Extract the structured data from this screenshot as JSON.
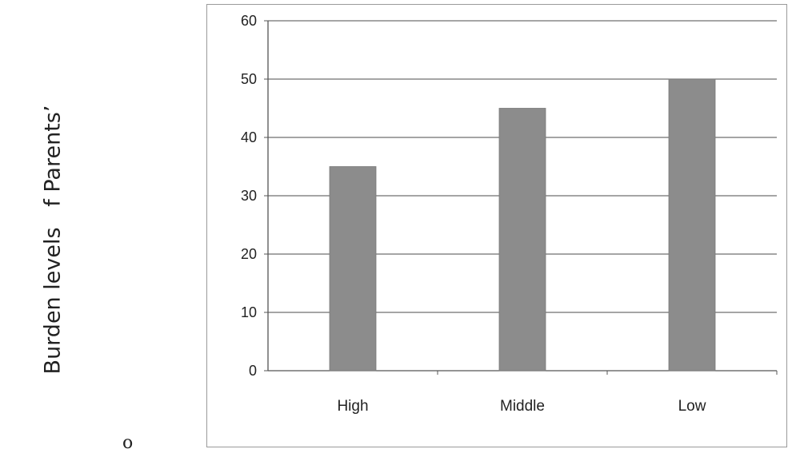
{
  "chart_data": {
    "type": "bar",
    "title": "",
    "xlabel": "",
    "ylabel": "Burden levels   f Parents’",
    "categories": [
      "High",
      "Middle",
      "Low"
    ],
    "values": [
      35,
      45,
      50
    ],
    "ylim": [
      0,
      60
    ],
    "yticks": [
      0,
      10,
      20,
      30,
      40,
      50,
      60
    ],
    "grid": true,
    "legend": "none",
    "bar_color": "#8c8c8c"
  },
  "stray_text": "o"
}
